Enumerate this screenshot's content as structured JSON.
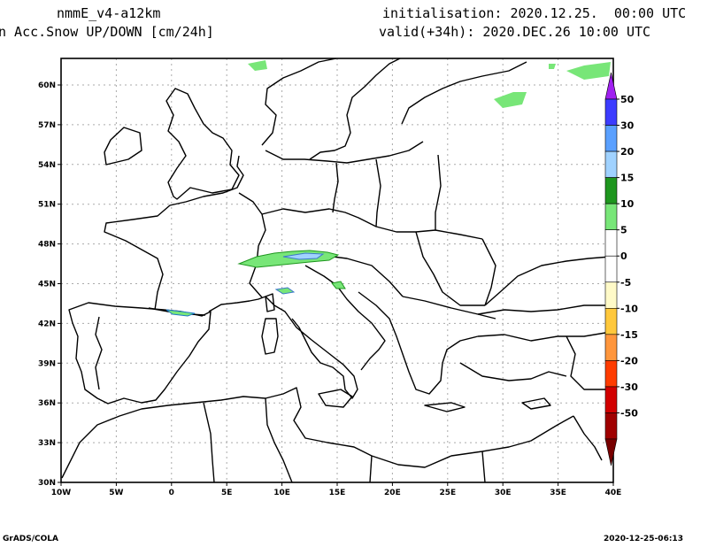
{
  "header": {
    "model": "nmmE_v4-a12km",
    "variable": "n Acc.Snow UP/DOWN [cm/24h]",
    "init": "initialisation: 2020.12.25.  00:00 UTC",
    "valid": "valid(+34h): 2020.DEC.26 10:00 UTC"
  },
  "axes": {
    "lon_ticks": [
      "10W",
      "5W",
      "0",
      "5E",
      "10E",
      "15E",
      "20E",
      "25E",
      "30E",
      "35E",
      "40E"
    ],
    "lat_ticks": [
      "30N",
      "33N",
      "36N",
      "39N",
      "42N",
      "45N",
      "48N",
      "51N",
      "54N",
      "57N",
      "60N"
    ]
  },
  "colorbar": {
    "labels": [
      "50",
      "30",
      "20",
      "15",
      "10",
      "5",
      "0",
      "-5",
      "-10",
      "-15",
      "-20",
      "-30",
      "-50"
    ],
    "colors": [
      "#a020f0",
      "#3c3cff",
      "#5aa0ff",
      "#a0d2ff",
      "#1e961e",
      "#78e678",
      "#ffffff",
      "#ffffff",
      "#fffac8",
      "#ffc83c",
      "#ff963c",
      "#ff3c00",
      "#d20000",
      "#a00000",
      "#780000"
    ]
  },
  "footer": {
    "left": "GrADS/COLA",
    "right": "2020-12-25-06:13"
  }
}
